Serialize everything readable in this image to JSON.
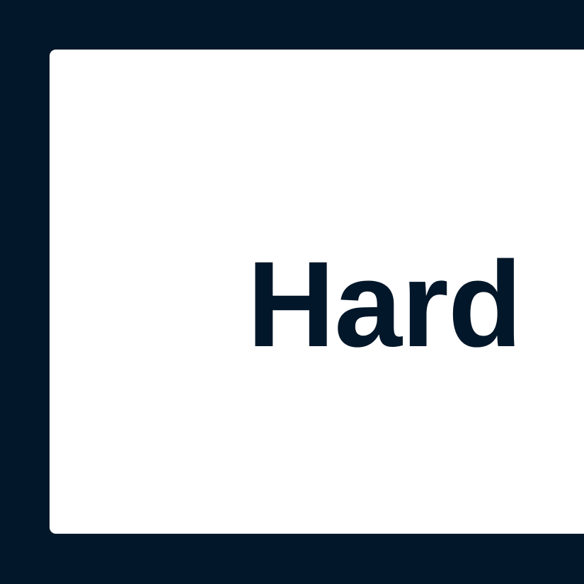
{
  "card": {
    "label": "Hard"
  },
  "colors": {
    "background": "#021729",
    "card": "#ffffff",
    "text": "#021729"
  }
}
